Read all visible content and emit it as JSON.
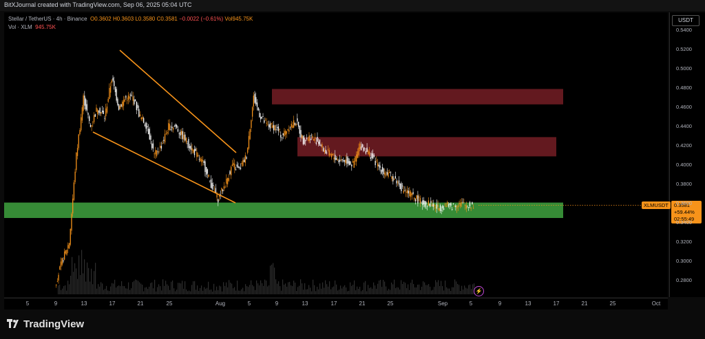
{
  "header": {
    "text": "BitXJournal created with TradingView.com, Sep 06, 2025 05:04 UTC"
  },
  "legend": {
    "title": "Stellar / TetherUS · 4h · Binance",
    "o": "O0.3602",
    "h": "H0.3603",
    "l": "L0.3580",
    "c": "C0.3581",
    "change": "−0.0022 (−0.61%)",
    "vol": "Vol945.75K",
    "vol_label": "Vol · XLM",
    "vol_value": "945.75K"
  },
  "axis": {
    "unit": "USDT",
    "y_ticks": [
      "0.5400",
      "0.5200",
      "0.5000",
      "0.4800",
      "0.4600",
      "0.4400",
      "0.4200",
      "0.4000",
      "0.3800",
      "0.3600",
      "0.3400",
      "0.3200",
      "0.3000",
      "0.2800"
    ],
    "x_ticks": [
      "5",
      "9",
      "13",
      "17",
      "21",
      "25",
      "Aug",
      "5",
      "9",
      "13",
      "17",
      "21",
      "25",
      "Sep",
      "5",
      "9",
      "13",
      "17",
      "21",
      "25",
      "Oct"
    ]
  },
  "price_tag": {
    "symbol": "XLMUSDT",
    "price": "0.3581",
    "change": "+59.44%",
    "countdown": "02:55:49"
  },
  "brand": {
    "name": "TradingView"
  },
  "colors": {
    "up": "#f7931a",
    "down": "#ffffff",
    "support": "#3c9a3c",
    "resistance": "#6e1c22",
    "trendline": "#f7931a",
    "volume": "#3a3a3a"
  },
  "icons": {
    "flash": "lightning-icon",
    "logo": "tradingview-logo"
  },
  "chart_data": {
    "type": "candlestick",
    "title": "Stellar / TetherUS · 4h · Binance",
    "ylabel": "USDT",
    "ylim": [
      0.27,
      0.55
    ],
    "x_labels": [
      "5",
      "9",
      "13",
      "17",
      "21",
      "25",
      "Aug",
      "5",
      "9",
      "13",
      "17",
      "21",
      "25",
      "Sep",
      "5",
      "9",
      "13",
      "17",
      "21",
      "25",
      "Oct"
    ],
    "series": [
      {
        "x": [
          "Jul 9",
          "Jul 10",
          "Jul 11",
          "Jul 12",
          "Jul 13",
          "Jul 14",
          "Jul 15",
          "Jul 16",
          "Jul 17",
          "Jul 18",
          "Jul 19",
          "Jul 20",
          "Jul 21",
          "Jul 22",
          "Jul 23",
          "Jul 24",
          "Jul 25",
          "Jul 26",
          "Jul 27",
          "Jul 28",
          "Jul 29",
          "Jul 30",
          "Jul 31",
          "Aug 1",
          "Aug 2",
          "Aug 3",
          "Aug 4",
          "Aug 5",
          "Aug 6",
          "Aug 7",
          "Aug 8",
          "Aug 9",
          "Aug 10",
          "Aug 11",
          "Aug 12",
          "Aug 13",
          "Aug 14",
          "Aug 15",
          "Aug 16",
          "Aug 17",
          "Aug 18",
          "Aug 19",
          "Aug 20",
          "Aug 21",
          "Aug 22",
          "Aug 23",
          "Aug 24",
          "Aug 25",
          "Aug 26",
          "Aug 27",
          "Aug 28",
          "Aug 29",
          "Aug 30",
          "Aug 31",
          "Sep 1",
          "Sep 2",
          "Sep 3",
          "Sep 4",
          "Sep 5",
          "Sep 6"
        ],
        "y": [
          0.275,
          0.3,
          0.32,
          0.41,
          0.47,
          0.44,
          0.46,
          0.45,
          0.49,
          0.46,
          0.47,
          0.47,
          0.45,
          0.44,
          0.41,
          0.42,
          0.44,
          0.44,
          0.43,
          0.42,
          0.41,
          0.4,
          0.38,
          0.365,
          0.38,
          0.4,
          0.395,
          0.41,
          0.47,
          0.45,
          0.44,
          0.44,
          0.43,
          0.44,
          0.445,
          0.425,
          0.43,
          0.425,
          0.415,
          0.41,
          0.405,
          0.405,
          0.4,
          0.42,
          0.415,
          0.405,
          0.395,
          0.39,
          0.385,
          0.375,
          0.37,
          0.365,
          0.36,
          0.36,
          0.355,
          0.358,
          0.357,
          0.36,
          0.358,
          0.3581
        ]
      }
    ],
    "zones": [
      {
        "type": "support",
        "from": 0.345,
        "to": 0.361
      },
      {
        "type": "resistance",
        "from": 0.463,
        "to": 0.479
      },
      {
        "type": "resistance",
        "from": 0.409,
        "to": 0.429
      }
    ],
    "last_price": 0.3581
  }
}
